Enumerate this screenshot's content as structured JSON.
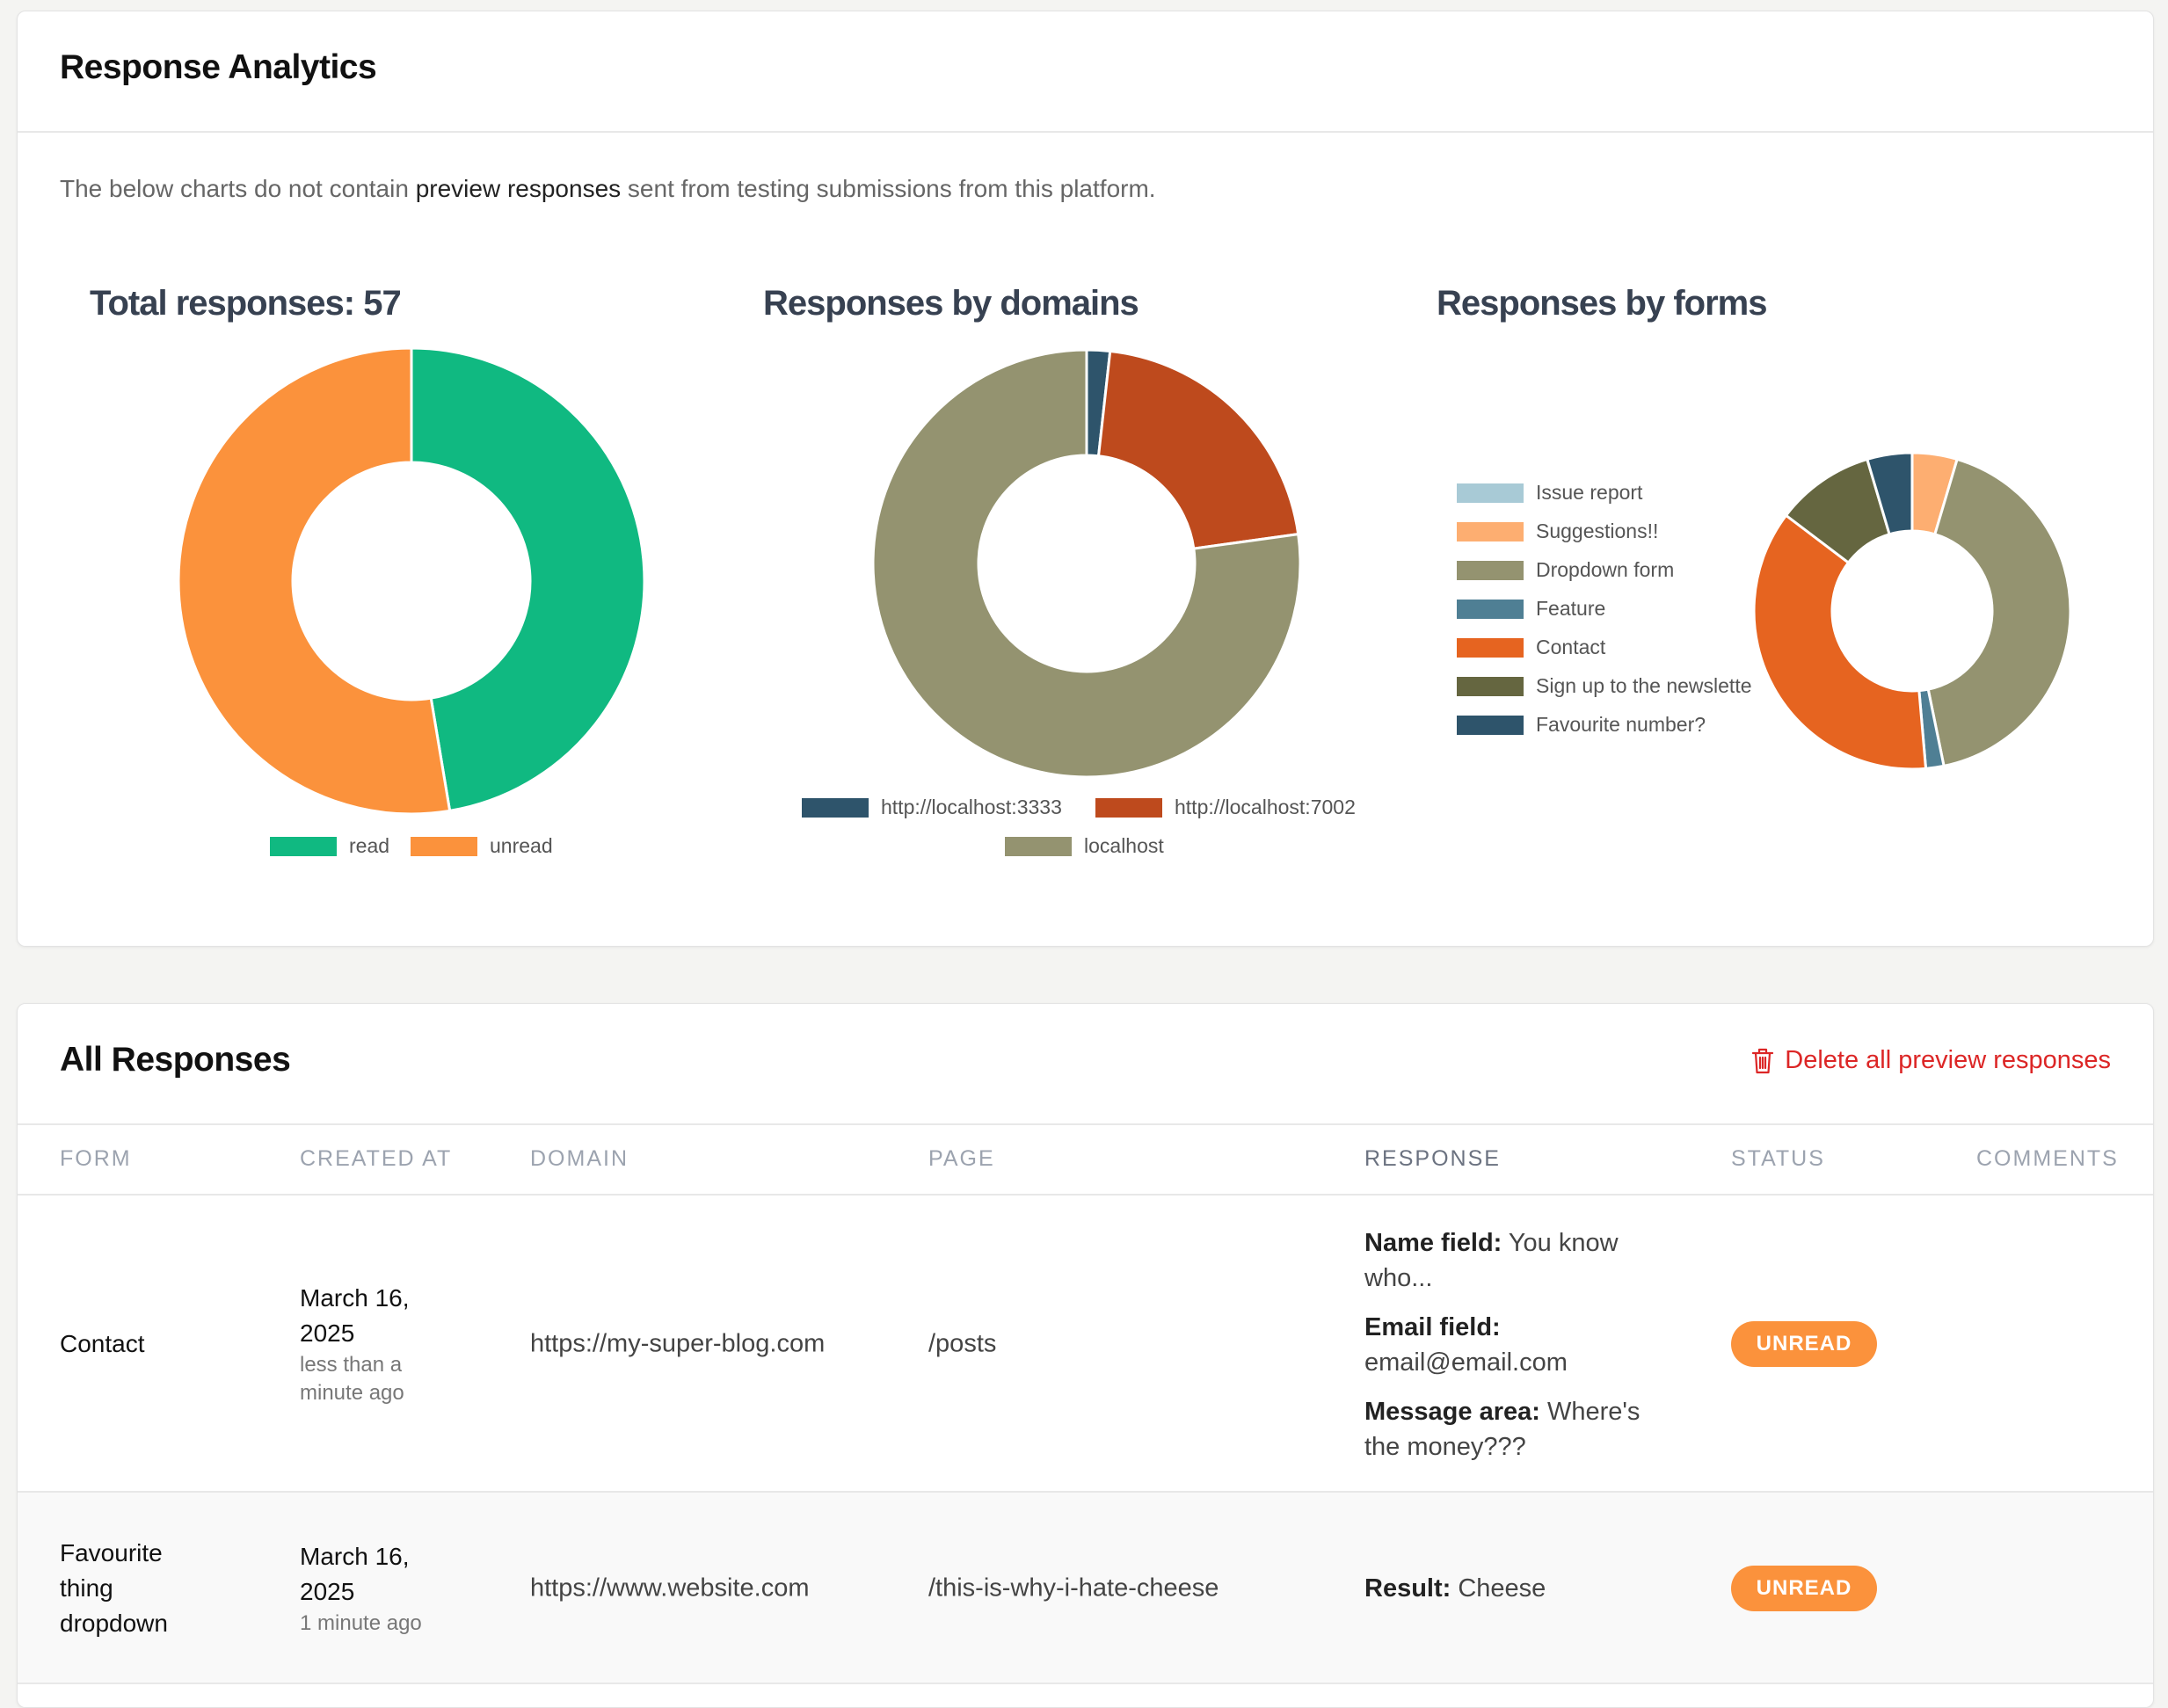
{
  "analytics": {
    "title": "Response Analytics",
    "note_prefix": "The below charts do not contain ",
    "note_link": "preview responses",
    "note_suffix": " sent from testing submissions from this platform."
  },
  "chart_data": [
    {
      "type": "pie",
      "title": "Total responses: 57",
      "labels": [
        "read",
        "unread"
      ],
      "values": [
        27,
        30
      ],
      "colors": [
        "#10b981",
        "#fb923c"
      ],
      "legend": "bottom"
    },
    {
      "type": "pie",
      "title": "Responses by domains",
      "labels": [
        "http://localhost:3333",
        "http://localhost:7002",
        "localhost"
      ],
      "values": [
        1,
        12,
        44
      ],
      "colors": [
        "#2e546b",
        "#be4a1d",
        "#949370"
      ],
      "legend": "bottom"
    },
    {
      "type": "pie",
      "title": "Responses by forms",
      "labels": [
        "Issue report",
        "Suggestions!!",
        "Dropdown form",
        "Feature",
        "Contact",
        "Sign up to the newslette",
        "Favourite number?"
      ],
      "values": [
        0,
        2.5,
        23,
        1,
        20,
        5.5,
        2.5
      ],
      "colors": [
        "#a8cad6",
        "#fdae71",
        "#949370",
        "#4f7f94",
        "#e66420",
        "#656640",
        "#2e546b"
      ],
      "legend": "left"
    }
  ],
  "responses": {
    "title": "All Responses",
    "delete_label": "Delete all preview responses",
    "columns": {
      "form": "Form",
      "created": "Created at",
      "domain": "Domain",
      "page": "Page",
      "response": "Response",
      "status": "Status",
      "comments": "Comments"
    },
    "rows": [
      {
        "form": "Contact",
        "date": "March 16, 2025",
        "ago": "less than a minute ago",
        "domain": "https://my-super-blog.com",
        "page": "/posts",
        "fields": [
          {
            "label": "Name field:",
            "value": " You know who..."
          },
          {
            "label": "Email field:",
            "value": " email@email.com"
          },
          {
            "label": "Message area:",
            "value": " Where's the money???"
          }
        ],
        "status": "UNREAD"
      },
      {
        "form": "Favourite thing dropdown",
        "date": "March 16, 2025",
        "ago": "1 minute ago",
        "domain": "https://www.website.com",
        "page": "/this-is-why-i-hate-cheese",
        "fields": [
          {
            "label": "Result:",
            "value": " Cheese"
          }
        ],
        "status": "UNREAD"
      }
    ]
  }
}
